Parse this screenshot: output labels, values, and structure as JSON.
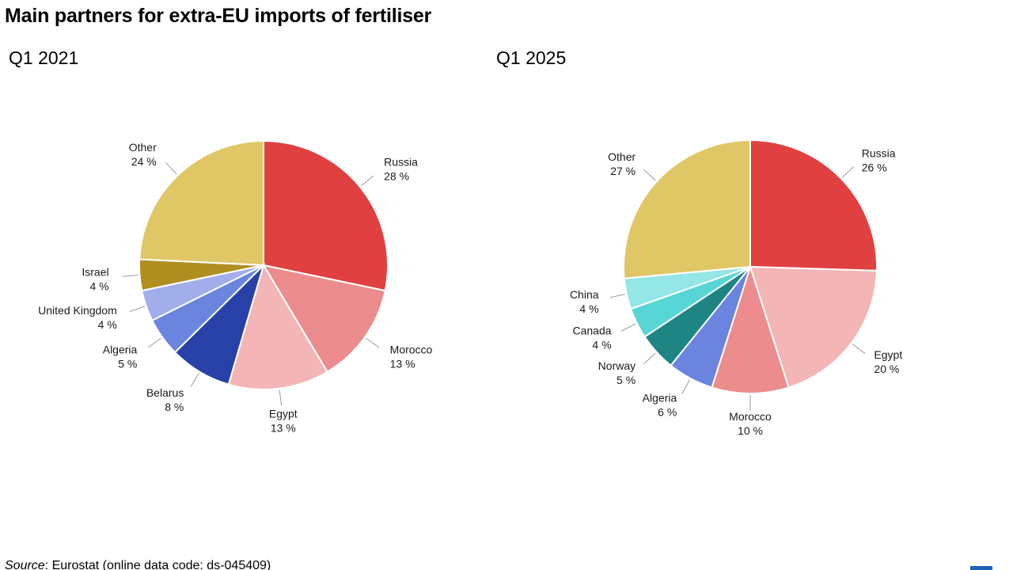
{
  "title": "Main partners for extra-EU imports of fertiliser",
  "source": {
    "label": "Source",
    "separator": ":",
    "text": "Eurostat (online data code: ds-045409)"
  },
  "chart_data": [
    {
      "type": "pie",
      "subtitle": "Q1 2021",
      "slices": [
        {
          "label": "Russia",
          "value": 28,
          "value_label": "28 %",
          "color": "#e04040"
        },
        {
          "label": "Morocco",
          "value": 13,
          "value_label": "13 %",
          "color": "#ec8c8c"
        },
        {
          "label": "Egypt",
          "value": 13,
          "value_label": "13 %",
          "color": "#f3b5b5"
        },
        {
          "label": "Belarus",
          "value": 8,
          "value_label": "8 %",
          "color": "#2841a8"
        },
        {
          "label": "Algeria",
          "value": 5,
          "value_label": "5 %",
          "color": "#6b84e0"
        },
        {
          "label": "United Kingdom",
          "value": 4,
          "value_label": "4 %",
          "color": "#a2aeea"
        },
        {
          "label": "Israel",
          "value": 4,
          "value_label": "4 %",
          "color": "#b08e20"
        },
        {
          "label": "Other",
          "value": 24,
          "value_label": "24 %",
          "color": "#e0c766"
        }
      ]
    },
    {
      "type": "pie",
      "subtitle": "Q1 2025",
      "slices": [
        {
          "label": "Russia",
          "value": 26,
          "value_label": "26 %",
          "color": "#e04040"
        },
        {
          "label": "Egypt",
          "value": 20,
          "value_label": "20 %",
          "color": "#f3b5b5"
        },
        {
          "label": "Morocco",
          "value": 10,
          "value_label": "10 %",
          "color": "#ec8c8c"
        },
        {
          "label": "Algeria",
          "value": 6,
          "value_label": "6 %",
          "color": "#6b84e0"
        },
        {
          "label": "Norway",
          "value": 5,
          "value_label": "5 %",
          "color": "#1e8484"
        },
        {
          "label": "Canada",
          "value": 4,
          "value_label": "4 %",
          "color": "#58d6d6"
        },
        {
          "label": "China",
          "value": 4,
          "value_label": "4 %",
          "color": "#95e6e6"
        },
        {
          "label": "Other",
          "value": 27,
          "value_label": "27 %",
          "color": "#e0c766"
        }
      ]
    }
  ]
}
